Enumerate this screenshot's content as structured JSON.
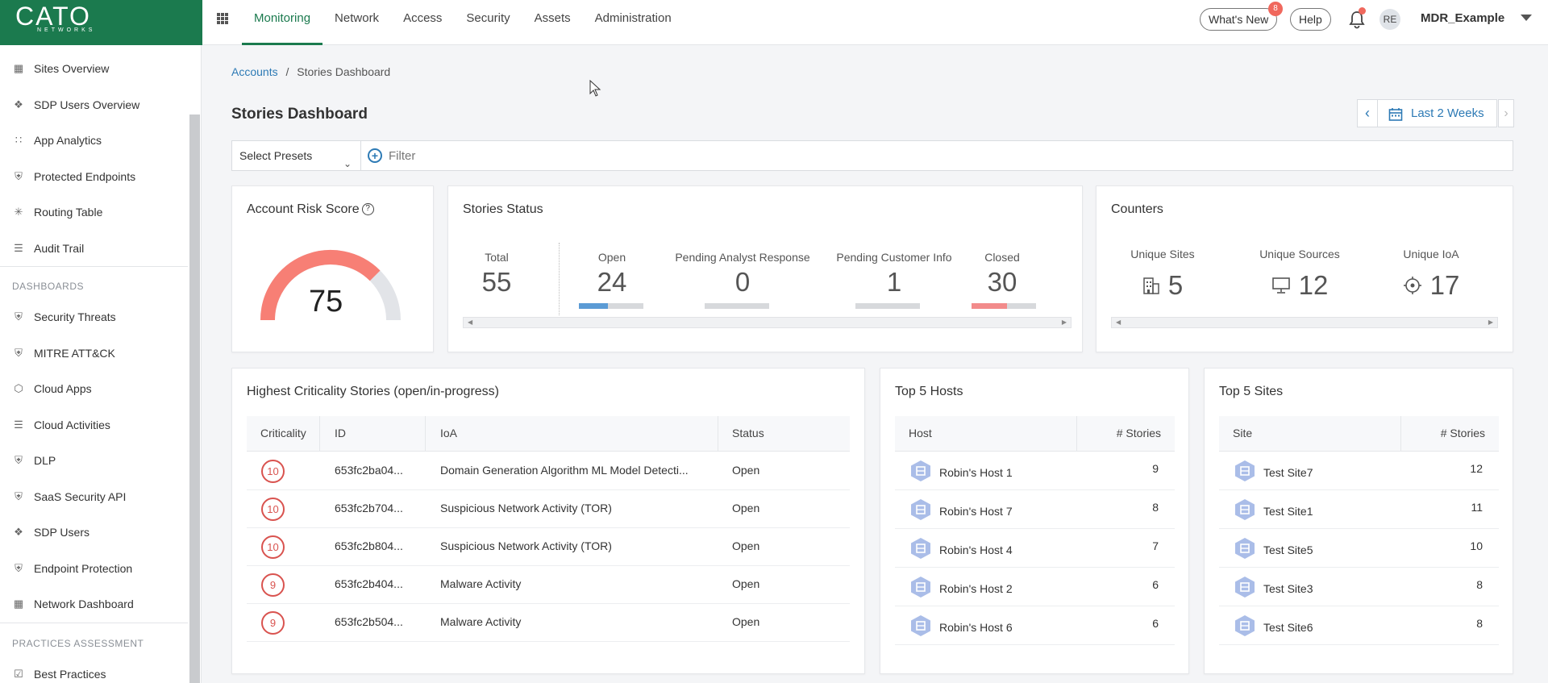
{
  "app": {
    "logo_text": "CATO",
    "logo_sub": "NETWORKS"
  },
  "nav": {
    "items": [
      "Monitoring",
      "Network",
      "Access",
      "Security",
      "Assets",
      "Administration"
    ],
    "active": "Monitoring"
  },
  "topbar": {
    "whats_new": "What's New",
    "whats_new_count": "8",
    "help": "Help",
    "avatar_initials": "RE",
    "account_name": "MDR_Example"
  },
  "sidebar": {
    "items": [
      {
        "label": "Sites Overview",
        "icon": "grid-icon"
      },
      {
        "label": "SDP Users Overview",
        "icon": "nodes-icon"
      },
      {
        "label": "App Analytics",
        "icon": "dots-icon"
      },
      {
        "label": "Protected Endpoints",
        "icon": "shield-icon"
      },
      {
        "label": "Routing Table",
        "icon": "routing-icon"
      },
      {
        "label": "Audit Trail",
        "icon": "list-icon"
      }
    ],
    "dashboards_heading": "DASHBOARDS",
    "dashboards": [
      {
        "label": "Security Threats",
        "icon": "shield-icon"
      },
      {
        "label": "MITRE ATT&CK",
        "icon": "shield-icon"
      },
      {
        "label": "Cloud Apps",
        "icon": "hexagon-icon"
      },
      {
        "label": "Cloud Activities",
        "icon": "list-icon"
      },
      {
        "label": "DLP",
        "icon": "shield-icon"
      },
      {
        "label": "SaaS Security API",
        "icon": "shield-icon"
      },
      {
        "label": "SDP Users",
        "icon": "nodes-icon"
      },
      {
        "label": "Endpoint Protection",
        "icon": "shield-icon"
      },
      {
        "label": "Network Dashboard",
        "icon": "grid-icon"
      }
    ],
    "practices_heading": "PRACTICES ASSESSMENT",
    "practices": [
      {
        "label": "Best Practices",
        "icon": "checkbox-icon"
      }
    ]
  },
  "breadcrumb": {
    "parent": "Accounts",
    "separator": "/",
    "current": "Stories Dashboard"
  },
  "page": {
    "title": "Stories Dashboard"
  },
  "date_range": {
    "label": "Last 2 Weeks"
  },
  "filter": {
    "presets": "Select Presets",
    "filter_label": "Filter"
  },
  "risk": {
    "title": "Account Risk Score",
    "help": "?",
    "value": "75",
    "score": 75,
    "max": 100
  },
  "stories_status": {
    "title": "Stories Status",
    "total": {
      "label": "Total",
      "value": "55"
    },
    "items": [
      {
        "label": "Open",
        "value": "24",
        "fill": 0.45,
        "color": "#5b9bd5"
      },
      {
        "label": "Pending Analyst Response",
        "value": "0",
        "fill": 0,
        "color": "#5b9bd5"
      },
      {
        "label": "Pending Customer Info",
        "value": "1",
        "fill": 0,
        "color": "#5b9bd5"
      },
      {
        "label": "Closed",
        "value": "30",
        "fill": 0.55,
        "color": "#f28b8b"
      }
    ]
  },
  "counters": {
    "title": "Counters",
    "items": [
      {
        "label": "Unique Sites",
        "value": "5",
        "icon": "building-icon"
      },
      {
        "label": "Unique Sources",
        "value": "12",
        "icon": "monitor-icon"
      },
      {
        "label": "Unique IoA",
        "value": "17",
        "icon": "target-icon"
      }
    ]
  },
  "criticality": {
    "title": "Highest Criticality Stories (open/in-progress)",
    "columns": [
      "Criticality",
      "ID",
      "IoA",
      "Status"
    ],
    "rows": [
      {
        "crit": "10",
        "id": "653fc2ba04...",
        "ioa": "Domain Generation Algorithm ML Model Detecti...",
        "status": "Open"
      },
      {
        "crit": "10",
        "id": "653fc2b704...",
        "ioa": "Suspicious Network Activity (TOR)",
        "status": "Open"
      },
      {
        "crit": "10",
        "id": "653fc2b804...",
        "ioa": "Suspicious Network Activity (TOR)",
        "status": "Open"
      },
      {
        "crit": "9",
        "id": "653fc2b404...",
        "ioa": "Malware Activity",
        "status": "Open"
      },
      {
        "crit": "9",
        "id": "653fc2b504...",
        "ioa": "Malware Activity",
        "status": "Open"
      }
    ]
  },
  "hosts": {
    "title": "Top 5 Hosts",
    "columns": [
      "Host",
      "# Stories"
    ],
    "rows": [
      {
        "name": "Robin's Host 1",
        "count": "9"
      },
      {
        "name": "Robin's Host 7",
        "count": "8"
      },
      {
        "name": "Robin's Host 4",
        "count": "7"
      },
      {
        "name": "Robin's Host 2",
        "count": "6"
      },
      {
        "name": "Robin's Host 6",
        "count": "6"
      }
    ]
  },
  "sites": {
    "title": "Top 5 Sites",
    "columns": [
      "Site",
      "# Stories"
    ],
    "rows": [
      {
        "name": "Test Site7",
        "count": "12"
      },
      {
        "name": "Test Site1",
        "count": "11"
      },
      {
        "name": "Test Site5",
        "count": "10"
      },
      {
        "name": "Test Site3",
        "count": "8"
      },
      {
        "name": "Test Site6",
        "count": "8"
      }
    ]
  }
}
